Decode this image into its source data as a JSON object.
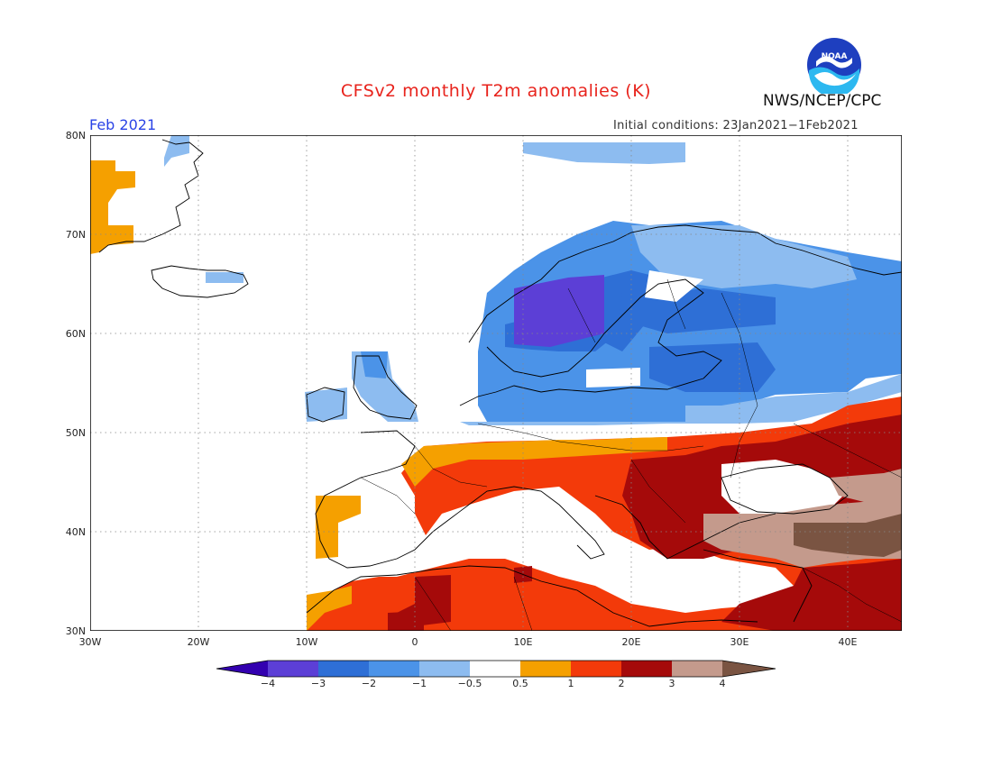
{
  "header": {
    "title": "CFSv2 monthly T2m anomalies (K)",
    "organization": "NWS/NCEP/CPC",
    "logo_text": "NOAA",
    "month": "Feb 2021",
    "initial_conditions": "Initial conditions: 23Jan2021−1Feb2021"
  },
  "map": {
    "region": "Europe / North Africa",
    "lat_labels": [
      "80N",
      "70N",
      "60N",
      "50N",
      "40N",
      "30N"
    ],
    "lon_labels": [
      "30W",
      "20W",
      "10W",
      "0",
      "10E",
      "20E",
      "30E",
      "40E"
    ],
    "grid": "dotted"
  },
  "colorbar": {
    "tick_labels": [
      "−4",
      "−3",
      "−2",
      "−1",
      "−0.5",
      "0.5",
      "1",
      "2",
      "3",
      "4"
    ],
    "colors": [
      "#3300b0",
      "#5c3fd6",
      "#2e6fd6",
      "#4b93e8",
      "#8dbcf0",
      "#ffffff",
      "#f5a000",
      "#f33a0a",
      "#a50a0a",
      "#c49a8c",
      "#7a5442"
    ]
  },
  "colors": {
    "title": "#e8231c",
    "month": "#2a43e6"
  }
}
